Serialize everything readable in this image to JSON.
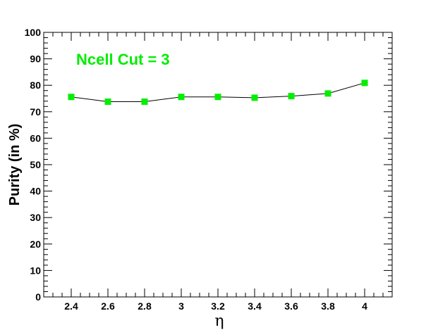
{
  "chart_data": {
    "type": "line",
    "title": "",
    "annotation": "Ncell Cut = 3",
    "xlabel": "η",
    "ylabel": "Purity (in %)",
    "xlim": [
      2.25,
      4.15
    ],
    "ylim": [
      0,
      100
    ],
    "x_ticks": [
      2.4,
      2.6,
      2.8,
      3,
      3.2,
      3.4,
      3.6,
      3.8,
      4
    ],
    "x_tick_labels": [
      "2.4",
      "2.6",
      "2.8",
      "3",
      "3.2",
      "3.4",
      "3.6",
      "3.8",
      "4"
    ],
    "y_ticks": [
      0,
      10,
      20,
      30,
      40,
      50,
      60,
      70,
      80,
      90,
      100
    ],
    "y_tick_labels": [
      "0",
      "10",
      "20",
      "30",
      "40",
      "50",
      "60",
      "70",
      "80",
      "90",
      "100"
    ],
    "grid": false,
    "series": [
      {
        "x": [
          2.4,
          2.6,
          2.8,
          3.0,
          3.2,
          3.4,
          3.6,
          3.8,
          4.0
        ],
        "y": [
          75.6,
          73.8,
          73.8,
          75.6,
          75.6,
          75.3,
          75.9,
          76.9,
          80.9
        ],
        "marker": "square",
        "marker_color": "#00ee00",
        "line_color": "#000000"
      }
    ],
    "colors": {
      "annotation": "#00ee00"
    }
  }
}
